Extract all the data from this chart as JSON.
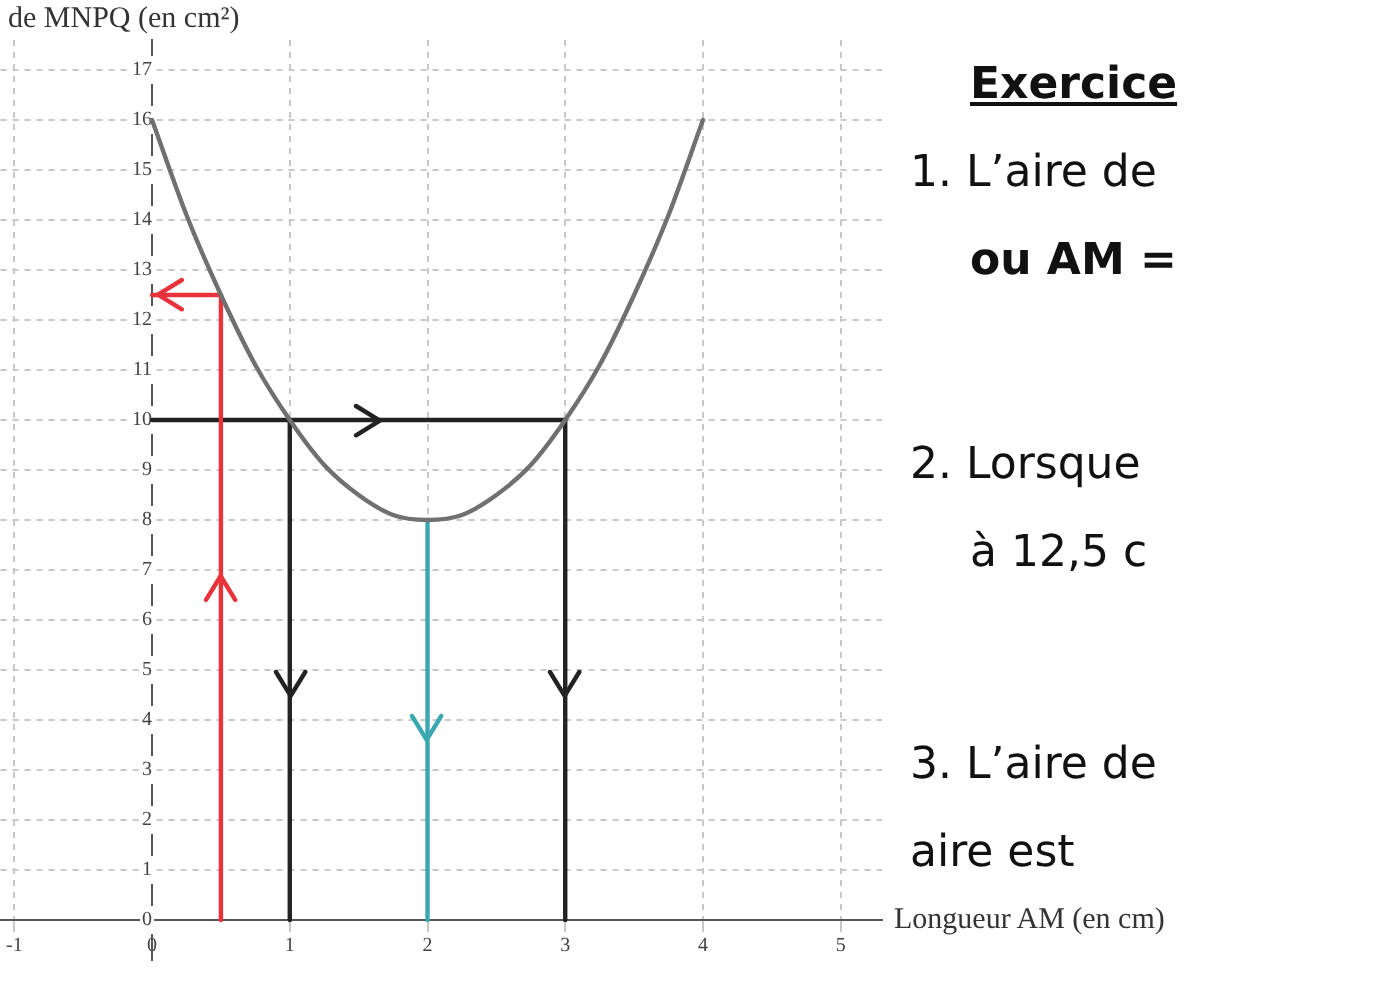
{
  "chart_data": {
    "type": "line",
    "xlabel": "Longueur AM (en cm)",
    "ylabel": "de MNPQ (en cm²)",
    "xlim": [
      -1.1,
      5.3
    ],
    "ylim": [
      -0.8,
      17.6
    ],
    "xticks": [
      -1,
      0,
      1,
      2,
      3,
      4,
      5
    ],
    "yticks": [
      0,
      1,
      2,
      3,
      4,
      5,
      6,
      7,
      8,
      9,
      10,
      11,
      12,
      13,
      14,
      15,
      16,
      17
    ],
    "grid": true,
    "legend": false,
    "marker": "none",
    "series": [
      {
        "color": "#707070",
        "x": [
          0,
          0.25,
          0.5,
          0.75,
          1,
          1.25,
          1.5,
          1.75,
          2,
          2.25,
          2.5,
          2.75,
          3,
          3.25,
          3.5,
          3.75,
          4
        ],
        "values": [
          16,
          14.1,
          12.5,
          11.1,
          10,
          9.1,
          8.5,
          8.1,
          8,
          8.1,
          8.5,
          9.1,
          10,
          11.1,
          12.5,
          14.1,
          16
        ]
      },
      {
        "type": "line",
        "color": "#e8323c",
        "x": [
          0.5,
          0.5,
          0
        ],
        "values": [
          0,
          12.5,
          12.5
        ]
      },
      {
        "type": "line",
        "color": "#222222",
        "x": [
          0,
          3
        ],
        "values": [
          10,
          10
        ]
      },
      {
        "type": "line",
        "color": "#222222",
        "x": [
          1,
          1
        ],
        "values": [
          10,
          0
        ]
      },
      {
        "type": "line",
        "color": "#222222",
        "x": [
          3,
          3
        ],
        "values": [
          10,
          0
        ]
      },
      {
        "type": "line",
        "color": "#3aa8b0",
        "x": [
          2,
          2
        ],
        "values": [
          8,
          0
        ]
      }
    ],
    "annotations": [
      "Exercice",
      "1. L’aire de",
      "ou AM =",
      "2. Lorsque",
      "à 12,5 c",
      "3. L’aire de",
      "aire est"
    ]
  }
}
